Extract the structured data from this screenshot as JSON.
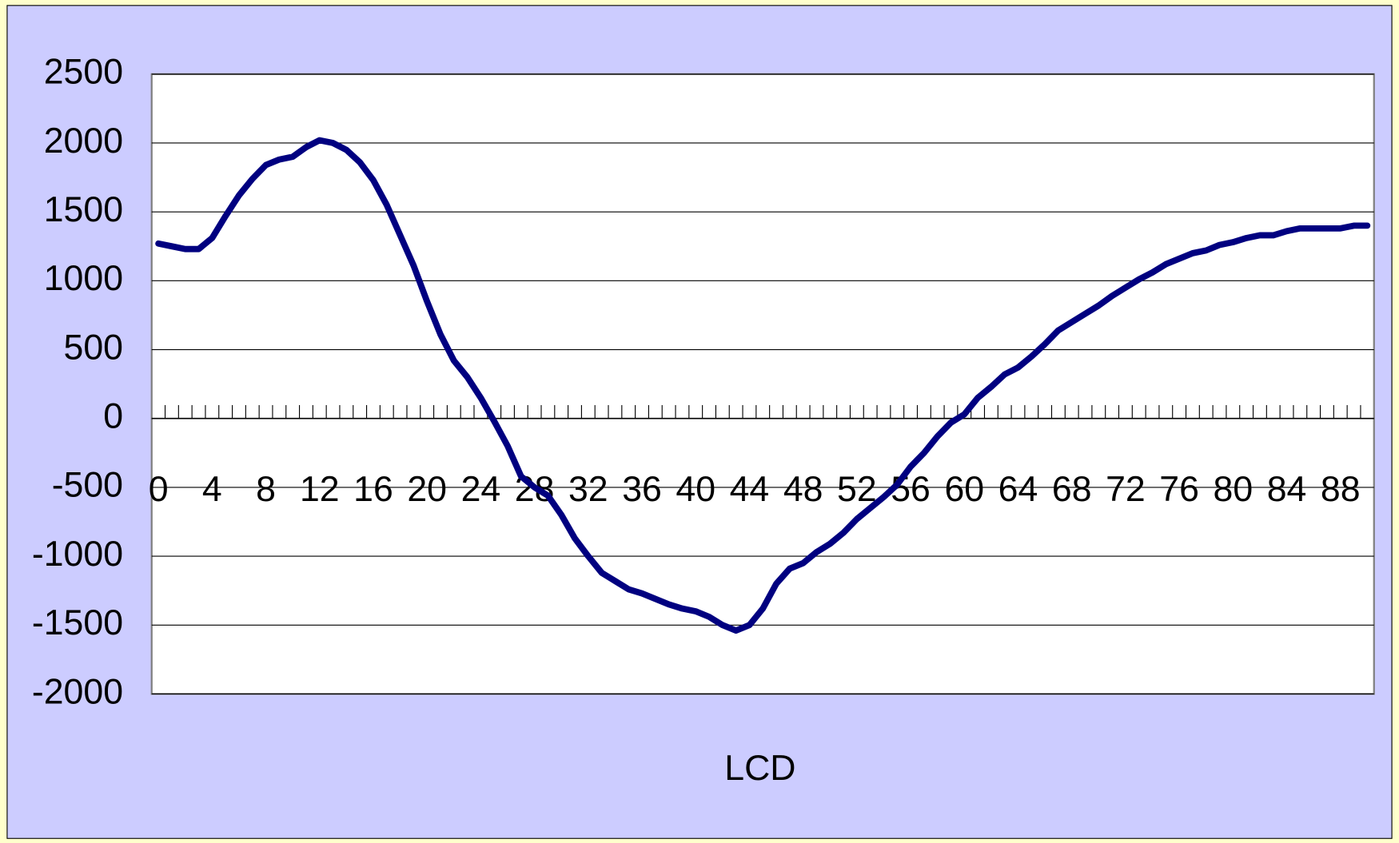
{
  "chart_data": {
    "type": "line",
    "x_label": "LCD",
    "categories": [
      0,
      null,
      null,
      null,
      4,
      null,
      null,
      null,
      8,
      null,
      null,
      null,
      12,
      null,
      null,
      null,
      16,
      null,
      null,
      null,
      20,
      null,
      null,
      null,
      24,
      null,
      null,
      null,
      28,
      null,
      null,
      null,
      32,
      null,
      null,
      null,
      36,
      null,
      null,
      null,
      40,
      null,
      null,
      null,
      44,
      null,
      null,
      null,
      48,
      null,
      null,
      null,
      52,
      null,
      null,
      null,
      56,
      null,
      null,
      null,
      60,
      null,
      null,
      null,
      64,
      null,
      null,
      null,
      68,
      null,
      null,
      null,
      72,
      null,
      null,
      null,
      76,
      null,
      null,
      null,
      80,
      null,
      null,
      null,
      84,
      null,
      null,
      null,
      88,
      null,
      null
    ],
    "values": [
      1270,
      1250,
      1230,
      1230,
      1310,
      1470,
      1620,
      1740,
      1840,
      1880,
      1900,
      1970,
      2020,
      2000,
      1950,
      1860,
      1730,
      1550,
      1330,
      1110,
      850,
      610,
      420,
      300,
      150,
      -20,
      -200,
      -420,
      -500,
      -560,
      -700,
      -870,
      -1000,
      -1120,
      -1180,
      -1240,
      -1270,
      -1310,
      -1350,
      -1380,
      -1400,
      -1440,
      -1500,
      -1540,
      -1500,
      -1380,
      -1200,
      -1090,
      -1050,
      -970,
      -910,
      -830,
      -730,
      -650,
      -570,
      -480,
      -350,
      -250,
      -130,
      -30,
      30,
      150,
      230,
      320,
      370,
      450,
      540,
      640,
      700,
      760,
      820,
      890,
      950,
      1010,
      1060,
      1120,
      1160,
      1200,
      1220,
      1260,
      1280,
      1310,
      1330,
      1330,
      1360,
      1380,
      1380,
      1380,
      1380,
      1400,
      1400
    ],
    "color": "#000080",
    "ylim": [
      -2000,
      2500
    ],
    "yticks": [
      -2000,
      -1500,
      -1000,
      -500,
      0,
      500,
      1000,
      1500,
      2000,
      2500
    ],
    "grid": true
  }
}
